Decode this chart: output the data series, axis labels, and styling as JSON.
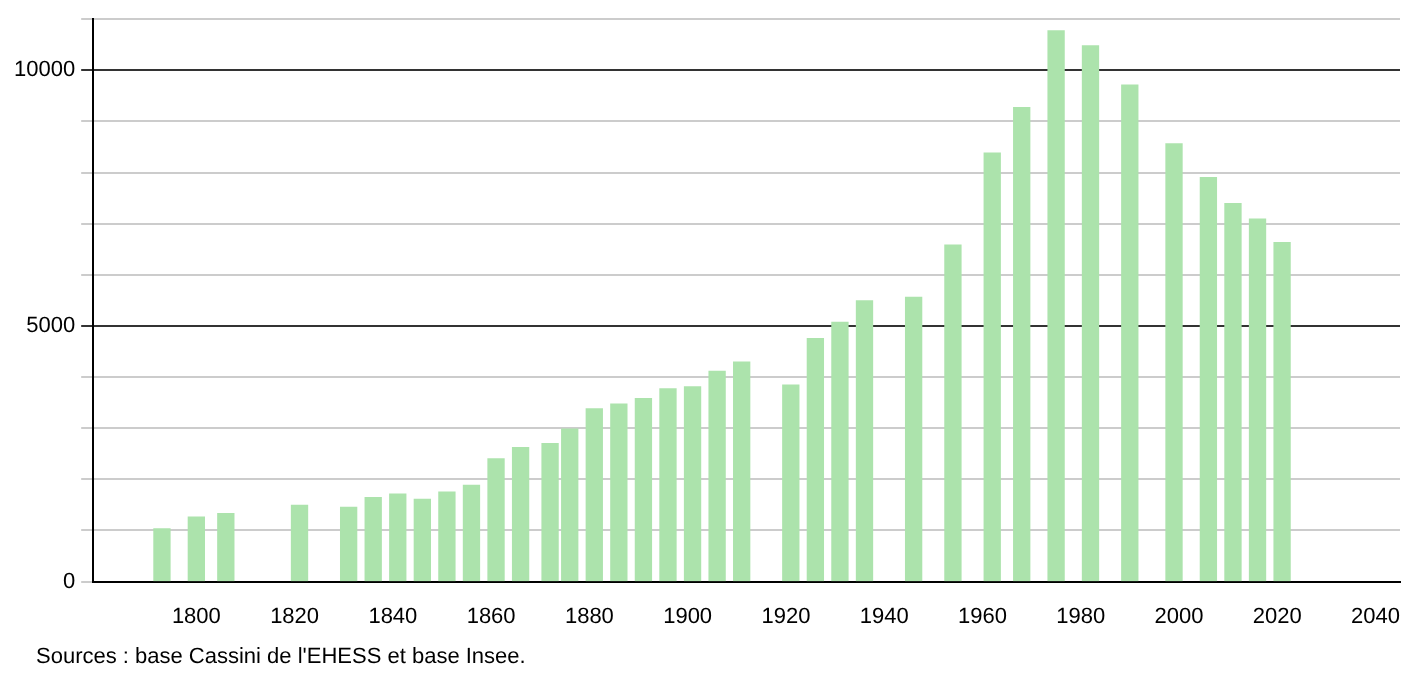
{
  "chart_data": {
    "type": "bar",
    "x": [
      1793,
      1800,
      1806,
      1821,
      1831,
      1836,
      1841,
      1846,
      1851,
      1856,
      1861,
      1866,
      1872,
      1876,
      1881,
      1886,
      1891,
      1896,
      1901,
      1906,
      1911,
      1921,
      1926,
      1931,
      1936,
      1946,
      1954,
      1962,
      1968,
      1975,
      1982,
      1990,
      1999,
      2006,
      2011,
      2016,
      2021
    ],
    "series": [
      {
        "color": "#ace3ac",
        "values": [
          1030,
          1260,
          1330,
          1490,
          1450,
          1640,
          1710,
          1610,
          1750,
          1880,
          2400,
          2620,
          2700,
          2980,
          3380,
          3470,
          3580,
          3770,
          3810,
          4110,
          4290,
          3840,
          4750,
          5070,
          5490,
          5560,
          6580,
          8380,
          9270,
          10770,
          10480,
          9710,
          8560,
          7900,
          7390,
          7090,
          6630
        ]
      }
    ],
    "xlim": [
      1779,
      2045
    ],
    "xticks": [
      1800,
      1820,
      1840,
      1860,
      1880,
      1900,
      1920,
      1940,
      1960,
      1980,
      2000,
      2020,
      2040
    ],
    "ylim": [
      0,
      11000
    ],
    "yticks": [
      0,
      {
        "value": 1000,
        "label": null
      },
      {
        "value": 2000,
        "label": null
      },
      {
        "value": 3000,
        "label": null
      },
      {
        "value": 4000,
        "label": null
      },
      5000,
      {
        "value": 6000,
        "label": null
      },
      {
        "value": 7000,
        "label": null
      },
      {
        "value": 8000,
        "label": null
      },
      {
        "value": 9000,
        "label": null
      },
      10000,
      {
        "value": 11000,
        "label": null
      }
    ],
    "grid": "y",
    "legend": false,
    "annotations": [
      "Sources : base Cassini de l'EHESS et base Insee."
    ]
  }
}
